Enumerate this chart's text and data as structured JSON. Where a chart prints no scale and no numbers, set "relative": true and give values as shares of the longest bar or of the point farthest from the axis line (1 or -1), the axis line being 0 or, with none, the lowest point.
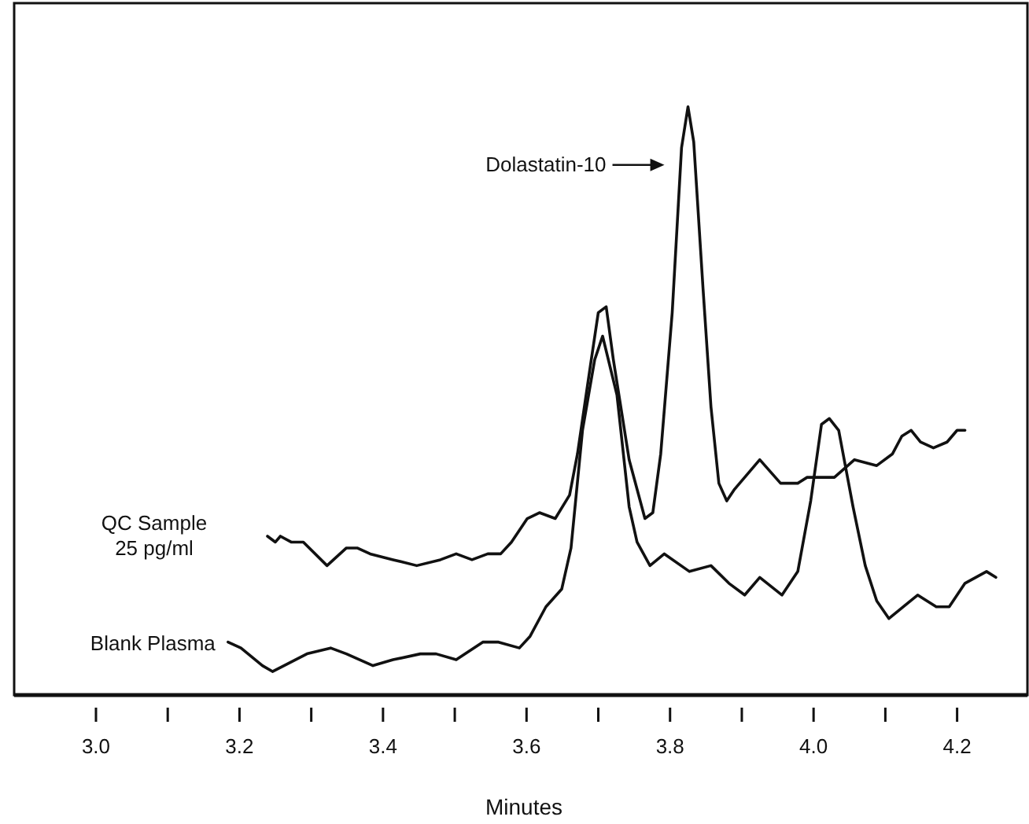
{
  "chart_data": {
    "type": "line",
    "relative": true,
    "xlabel": "Minutes",
    "xlim": [
      2.886,
      4.298
    ],
    "xticks": [
      {
        "value": 3,
        "label": "3.0"
      },
      {
        "value": 3.1,
        "label": null
      },
      {
        "value": 3.2,
        "label": "3.2"
      },
      {
        "value": 3.3,
        "label": null
      },
      {
        "value": 3.4,
        "label": "3.4"
      },
      {
        "value": 3.5,
        "label": null
      },
      {
        "value": 3.6,
        "label": "3.6"
      },
      {
        "value": 3.7,
        "label": null
      },
      {
        "value": 3.8,
        "label": "3.8"
      },
      {
        "value": 3.9,
        "label": null
      },
      {
        "value": 4,
        "label": "4.0"
      },
      {
        "value": 4.1,
        "label": null
      },
      {
        "value": 4.2,
        "label": "4.2"
      }
    ],
    "tick_labels": "x",
    "grid": false,
    "marker": "none",
    "line_style": "solid",
    "annotations": [
      "Dolastatin-10"
    ],
    "series": [
      {
        "name": "QC Sample\n25 pg/ml",
        "color": "#111111",
        "x": [
          3.239,
          3.25,
          3.257,
          3.272,
          3.289,
          3.322,
          3.349,
          3.364,
          3.382,
          3.414,
          3.447,
          3.48,
          3.502,
          3.524,
          3.546,
          3.564,
          3.579,
          3.601,
          3.618,
          3.64,
          3.66,
          3.671,
          3.689,
          3.7,
          3.711,
          3.721,
          3.743,
          3.765,
          3.776,
          3.787,
          3.803,
          3.816,
          3.825,
          3.833,
          3.846,
          3.857,
          3.868,
          3.879,
          3.89,
          3.925,
          3.954,
          3.978,
          3.991,
          4.029,
          4.057,
          4.088,
          4.11,
          4.123,
          4.136,
          4.149,
          4.167,
          4.186,
          4.2,
          4.211
        ],
        "values": [
          0.27,
          0.26,
          0.27,
          0.26,
          0.26,
          0.22,
          0.25,
          0.25,
          0.24,
          0.23,
          0.22,
          0.23,
          0.24,
          0.23,
          0.24,
          0.24,
          0.26,
          0.3,
          0.31,
          0.3,
          0.34,
          0.41,
          0.56,
          0.65,
          0.66,
          0.57,
          0.4,
          0.3,
          0.31,
          0.41,
          0.65,
          0.93,
          1,
          0.94,
          0.69,
          0.49,
          0.36,
          0.33,
          0.35,
          0.4,
          0.36,
          0.36,
          0.37,
          0.37,
          0.4,
          0.39,
          0.41,
          0.44,
          0.45,
          0.43,
          0.42,
          0.43,
          0.45,
          0.45
        ]
      },
      {
        "name": "Blank Plasma",
        "color": "#111111",
        "x": [
          3.184,
          3.202,
          3.232,
          3.246,
          3.294,
          3.327,
          3.349,
          3.386,
          3.414,
          3.452,
          3.474,
          3.502,
          3.539,
          3.561,
          3.59,
          3.605,
          3.627,
          3.649,
          3.662,
          3.678,
          3.695,
          3.706,
          3.726,
          3.743,
          3.754,
          3.772,
          3.792,
          3.827,
          3.857,
          3.882,
          3.904,
          3.925,
          3.956,
          3.978,
          3.996,
          4.011,
          4.022,
          4.035,
          4.055,
          4.072,
          4.088,
          4.105,
          4.145,
          4.171,
          4.189,
          4.211,
          4.241,
          4.254
        ],
        "values": [
          0.09,
          0.08,
          0.05,
          0.04,
          0.07,
          0.08,
          0.07,
          0.05,
          0.06,
          0.07,
          0.07,
          0.06,
          0.09,
          0.09,
          0.08,
          0.1,
          0.15,
          0.18,
          0.25,
          0.45,
          0.57,
          0.61,
          0.51,
          0.32,
          0.26,
          0.22,
          0.24,
          0.21,
          0.22,
          0.19,
          0.17,
          0.2,
          0.17,
          0.21,
          0.33,
          0.46,
          0.47,
          0.45,
          0.32,
          0.22,
          0.16,
          0.13,
          0.17,
          0.15,
          0.15,
          0.19,
          0.21,
          0.2
        ]
      }
    ]
  }
}
